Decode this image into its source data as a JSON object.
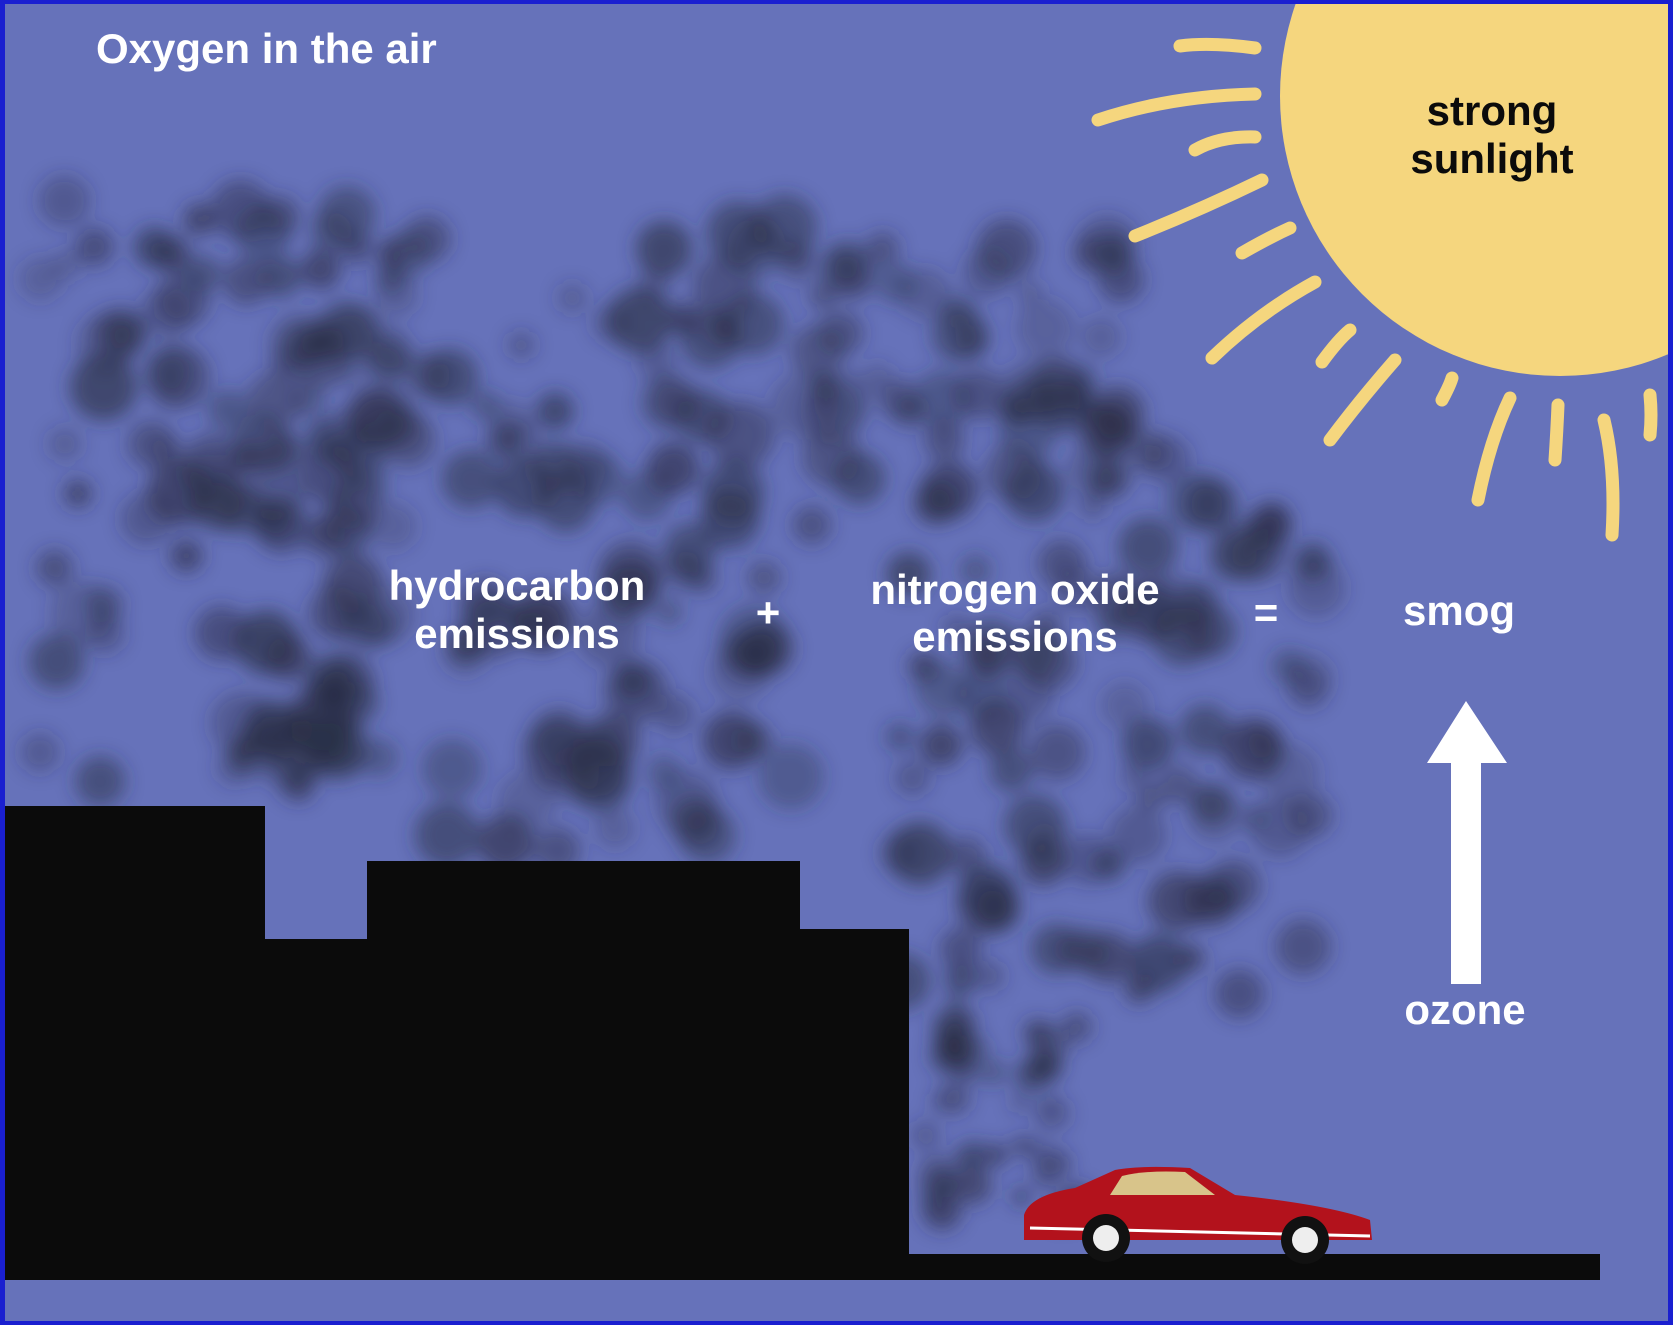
{
  "title": "Oxygen in the air",
  "sun": {
    "lines": [
      "strong",
      "sunlight"
    ]
  },
  "equation": {
    "hydrocarbon": {
      "lines": [
        "hydrocarbon",
        "emissions"
      ]
    },
    "plus": "+",
    "nitrogen": {
      "lines": [
        "nitrogen oxide",
        "emissions"
      ]
    },
    "equals": "=",
    "result": "smog"
  },
  "ozone": "ozone"
}
